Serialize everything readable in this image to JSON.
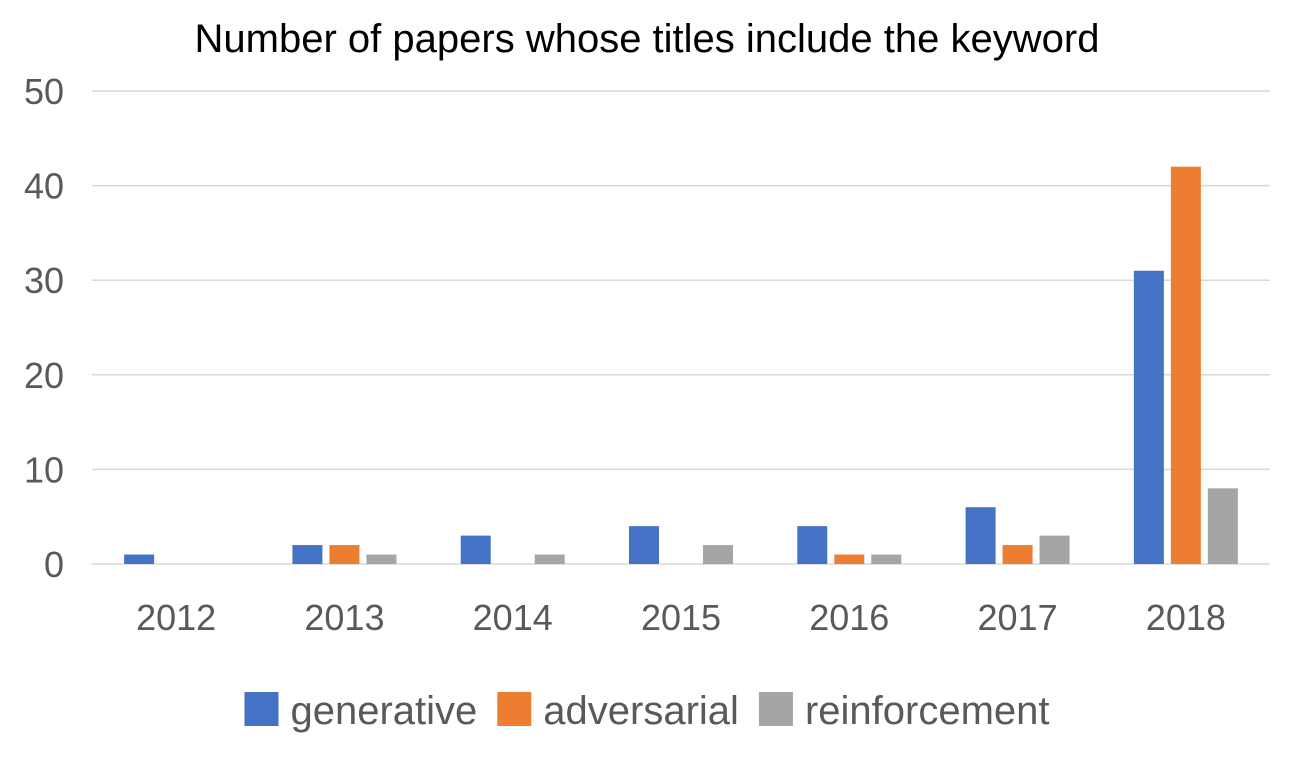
{
  "chart_data": {
    "type": "bar",
    "title": "Number of papers whose titles include the keyword",
    "xlabel": "",
    "ylabel": "",
    "categories": [
      "2012",
      "2013",
      "2014",
      "2015",
      "2016",
      "2017",
      "2018"
    ],
    "series": [
      {
        "name": "generative",
        "color": "#4472c4",
        "values": [
          1,
          2,
          3,
          4,
          4,
          6,
          31
        ]
      },
      {
        "name": "adversarial",
        "color": "#ed7d31",
        "values": [
          0,
          2,
          0,
          0,
          1,
          2,
          42
        ]
      },
      {
        "name": "reinforcement",
        "color": "#a5a5a5",
        "values": [
          0,
          1,
          1,
          2,
          1,
          3,
          8
        ]
      }
    ],
    "ylim": [
      0,
      50
    ],
    "yticks": [
      "0",
      "10",
      "20",
      "30",
      "40",
      "50"
    ],
    "grid": true,
    "legend_position": "bottom"
  }
}
